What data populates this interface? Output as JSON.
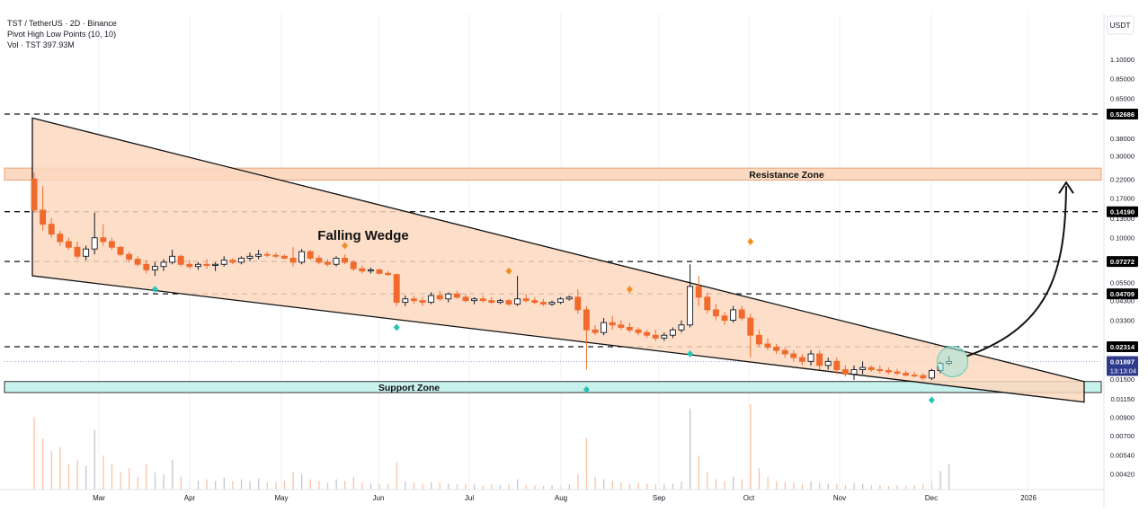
{
  "header": {
    "symbol_line": "TST / TetherUS · 2D · Binance",
    "indicator_line": "Pivot High Low Points (10, 10)",
    "volume_line": "Vol · TST 397.93M"
  },
  "colors": {
    "up": "#131722",
    "down": "#f06a2c",
    "wedge_fill": "#fbd8c0",
    "zone_fill": "#fbd8c0",
    "support_fill": "#c8f2ee",
    "pivot_high": "#f09020",
    "pivot_low": "#26c6b6",
    "price_badge": "#2e3a8c",
    "circle": "#9ee6d8"
  },
  "chart_data": {
    "type": "candlestick",
    "pair": "TST / TetherUS",
    "timeframe": "2D",
    "exchange": "Binance",
    "y_scale": "log",
    "y_axis_unit": "USDT",
    "y_ticks": [
      "1.10000",
      "0.85000",
      "0.65000",
      "0.38000",
      "0.30000",
      "0.22000",
      "0.17000",
      "0.13000",
      "0.10000",
      "0.05500",
      "0.04300",
      "0.03300",
      "0.01500",
      "0.01150",
      "0.00900",
      "0.00700",
      "0.00540",
      "0.00420"
    ],
    "x_ticks": [
      "Mar",
      "Apr",
      "May",
      "Jun",
      "Jul",
      "Aug",
      "Sep",
      "Oct",
      "Nov",
      "Dec",
      "2026"
    ],
    "levels": [
      "0.52686",
      "0.14190",
      "0.07272",
      "0.04709",
      "0.02314"
    ],
    "current_price": "0.01897",
    "countdown": "13:13:04",
    "annotations": {
      "pattern": "Falling Wedge",
      "resistance": "Resistance Zone",
      "support": "Support Zone"
    },
    "wedge": {
      "upper_start": 0.5,
      "upper_end": 0.0145,
      "lower_start": 0.06,
      "lower_end": 0.011
    },
    "resistance_zone": [
      0.217,
      0.255
    ],
    "support_zone": [
      0.0125,
      0.0145
    ],
    "candles": [
      [
        0.22,
        0.24,
        0.14,
        0.145
      ],
      [
        0.145,
        0.2,
        0.11,
        0.12
      ],
      [
        0.12,
        0.13,
        0.1,
        0.105
      ],
      [
        0.105,
        0.11,
        0.09,
        0.095
      ],
      [
        0.095,
        0.1,
        0.085,
        0.088
      ],
      [
        0.088,
        0.095,
        0.075,
        0.078
      ],
      [
        0.078,
        0.09,
        0.074,
        0.086
      ],
      [
        0.086,
        0.14,
        0.08,
        0.1
      ],
      [
        0.1,
        0.12,
        0.09,
        0.095
      ],
      [
        0.095,
        0.1,
        0.085,
        0.088
      ],
      [
        0.088,
        0.09,
        0.078,
        0.08
      ],
      [
        0.08,
        0.083,
        0.072,
        0.075
      ],
      [
        0.075,
        0.078,
        0.068,
        0.07
      ],
      [
        0.07,
        0.074,
        0.062,
        0.065
      ],
      [
        0.065,
        0.072,
        0.06,
        0.068
      ],
      [
        0.068,
        0.075,
        0.064,
        0.072
      ],
      [
        0.072,
        0.085,
        0.07,
        0.078
      ],
      [
        0.078,
        0.08,
        0.068,
        0.07
      ],
      [
        0.07,
        0.074,
        0.066,
        0.068
      ],
      [
        0.068,
        0.072,
        0.065,
        0.07
      ],
      [
        0.07,
        0.075,
        0.066,
        0.069
      ],
      [
        0.069,
        0.072,
        0.064,
        0.07
      ],
      [
        0.07,
        0.078,
        0.068,
        0.074
      ],
      [
        0.074,
        0.076,
        0.07,
        0.072
      ],
      [
        0.072,
        0.078,
        0.07,
        0.076
      ],
      [
        0.076,
        0.082,
        0.073,
        0.078
      ],
      [
        0.078,
        0.085,
        0.075,
        0.08
      ],
      [
        0.08,
        0.083,
        0.077,
        0.079
      ],
      [
        0.079,
        0.082,
        0.076,
        0.078
      ],
      [
        0.078,
        0.08,
        0.075,
        0.076
      ],
      [
        0.076,
        0.088,
        0.068,
        0.072
      ],
      [
        0.072,
        0.086,
        0.07,
        0.083
      ],
      [
        0.083,
        0.085,
        0.074,
        0.076
      ],
      [
        0.076,
        0.079,
        0.07,
        0.072
      ],
      [
        0.072,
        0.075,
        0.068,
        0.07
      ],
      [
        0.07,
        0.078,
        0.068,
        0.076
      ],
      [
        0.076,
        0.08,
        0.07,
        0.072
      ],
      [
        0.072,
        0.074,
        0.064,
        0.066
      ],
      [
        0.066,
        0.069,
        0.062,
        0.064
      ],
      [
        0.064,
        0.067,
        0.062,
        0.065
      ],
      [
        0.065,
        0.066,
        0.061,
        0.062
      ],
      [
        0.062,
        0.064,
        0.06,
        0.061
      ],
      [
        0.061,
        0.062,
        0.04,
        0.042
      ],
      [
        0.042,
        0.046,
        0.04,
        0.044
      ],
      [
        0.044,
        0.046,
        0.041,
        0.043
      ],
      [
        0.043,
        0.045,
        0.04,
        0.042
      ],
      [
        0.042,
        0.048,
        0.041,
        0.046
      ],
      [
        0.046,
        0.049,
        0.043,
        0.044
      ],
      [
        0.044,
        0.048,
        0.042,
        0.047
      ],
      [
        0.047,
        0.049,
        0.044,
        0.045
      ],
      [
        0.045,
        0.047,
        0.042,
        0.043
      ],
      [
        0.043,
        0.045,
        0.041,
        0.044
      ],
      [
        0.044,
        0.046,
        0.042,
        0.043
      ],
      [
        0.043,
        0.045,
        0.041,
        0.042
      ],
      [
        0.042,
        0.044,
        0.041,
        0.043
      ],
      [
        0.043,
        0.044,
        0.04,
        0.041
      ],
      [
        0.041,
        0.06,
        0.04,
        0.044
      ],
      [
        0.044,
        0.047,
        0.042,
        0.043
      ],
      [
        0.043,
        0.045,
        0.041,
        0.042
      ],
      [
        0.042,
        0.044,
        0.04,
        0.041
      ],
      [
        0.041,
        0.043,
        0.04,
        0.042
      ],
      [
        0.042,
        0.045,
        0.041,
        0.044
      ],
      [
        0.044,
        0.046,
        0.043,
        0.045
      ],
      [
        0.045,
        0.05,
        0.036,
        0.038
      ],
      [
        0.038,
        0.04,
        0.017,
        0.029
      ],
      [
        0.029,
        0.031,
        0.027,
        0.028
      ],
      [
        0.028,
        0.034,
        0.027,
        0.032
      ],
      [
        0.032,
        0.035,
        0.029,
        0.031
      ],
      [
        0.031,
        0.033,
        0.029,
        0.03
      ],
      [
        0.03,
        0.032,
        0.028,
        0.029
      ],
      [
        0.029,
        0.03,
        0.027,
        0.028
      ],
      [
        0.028,
        0.029,
        0.026,
        0.027
      ],
      [
        0.027,
        0.029,
        0.025,
        0.026
      ],
      [
        0.026,
        0.028,
        0.025,
        0.027
      ],
      [
        0.027,
        0.03,
        0.026,
        0.029
      ],
      [
        0.029,
        0.033,
        0.028,
        0.031
      ],
      [
        0.031,
        0.07,
        0.03,
        0.052
      ],
      [
        0.052,
        0.06,
        0.04,
        0.045
      ],
      [
        0.045,
        0.048,
        0.036,
        0.038
      ],
      [
        0.038,
        0.041,
        0.033,
        0.035
      ],
      [
        0.035,
        0.037,
        0.031,
        0.033
      ],
      [
        0.033,
        0.04,
        0.032,
        0.038
      ],
      [
        0.038,
        0.04,
        0.033,
        0.034
      ],
      [
        0.034,
        0.036,
        0.02,
        0.027
      ],
      [
        0.027,
        0.029,
        0.023,
        0.024
      ],
      [
        0.024,
        0.026,
        0.022,
        0.023
      ],
      [
        0.023,
        0.024,
        0.021,
        0.022
      ],
      [
        0.022,
        0.023,
        0.02,
        0.021
      ],
      [
        0.021,
        0.022,
        0.019,
        0.02
      ],
      [
        0.02,
        0.021,
        0.018,
        0.019
      ],
      [
        0.019,
        0.022,
        0.018,
        0.021
      ],
      [
        0.021,
        0.022,
        0.017,
        0.018
      ],
      [
        0.018,
        0.02,
        0.017,
        0.019
      ],
      [
        0.019,
        0.02,
        0.016,
        0.017
      ],
      [
        0.017,
        0.018,
        0.0155,
        0.016
      ],
      [
        0.016,
        0.018,
        0.0148,
        0.017
      ],
      [
        0.017,
        0.019,
        0.016,
        0.0175
      ],
      [
        0.0175,
        0.018,
        0.0165,
        0.017
      ],
      [
        0.017,
        0.018,
        0.0162,
        0.0168
      ],
      [
        0.0168,
        0.0175,
        0.016,
        0.0165
      ],
      [
        0.0165,
        0.0172,
        0.0158,
        0.0162
      ],
      [
        0.0162,
        0.0168,
        0.0155,
        0.0158
      ],
      [
        0.0158,
        0.0165,
        0.0154,
        0.0157
      ],
      [
        0.0157,
        0.0162,
        0.0148,
        0.0152
      ],
      [
        0.0152,
        0.0172,
        0.0148,
        0.0168
      ],
      [
        0.0168,
        0.019,
        0.0162,
        0.0185
      ],
      [
        0.0185,
        0.0205,
        0.018,
        0.01897
      ]
    ],
    "volume": [
      0.85,
      0.6,
      0.45,
      0.5,
      0.3,
      0.35,
      0.28,
      0.7,
      0.4,
      0.3,
      0.2,
      0.25,
      0.15,
      0.3,
      0.2,
      0.18,
      0.35,
      0.15,
      0.12,
      0.1,
      0.12,
      0.1,
      0.14,
      0.1,
      0.12,
      0.1,
      0.13,
      0.08,
      0.09,
      0.1,
      0.2,
      0.18,
      0.12,
      0.1,
      0.08,
      0.12,
      0.1,
      0.15,
      0.08,
      0.07,
      0.06,
      0.07,
      0.32,
      0.1,
      0.08,
      0.07,
      0.09,
      0.08,
      0.07,
      0.06,
      0.07,
      0.06,
      0.05,
      0.06,
      0.05,
      0.06,
      0.12,
      0.05,
      0.05,
      0.04,
      0.05,
      0.05,
      0.06,
      0.18,
      0.6,
      0.15,
      0.12,
      0.1,
      0.08,
      0.07,
      0.08,
      0.07,
      0.06,
      0.06,
      0.07,
      0.09,
      0.95,
      0.4,
      0.2,
      0.12,
      0.1,
      0.15,
      0.12,
      1.0,
      0.25,
      0.15,
      0.1,
      0.09,
      0.08,
      0.07,
      0.1,
      0.08,
      0.07,
      0.06,
      0.05,
      0.08,
      0.07,
      0.05,
      0.05,
      0.04,
      0.05,
      0.04,
      0.05,
      0.06,
      0.1,
      0.22,
      0.3
    ],
    "pivot_highs": [
      [
        36,
        0.09
      ],
      [
        55,
        0.064
      ],
      [
        69,
        0.05
      ],
      [
        83,
        0.095
      ]
    ],
    "pivot_lows": [
      [
        14,
        0.05
      ],
      [
        42,
        0.03
      ],
      [
        64,
        0.013
      ],
      [
        76,
        0.021
      ],
      [
        104,
        0.0113
      ]
    ]
  }
}
